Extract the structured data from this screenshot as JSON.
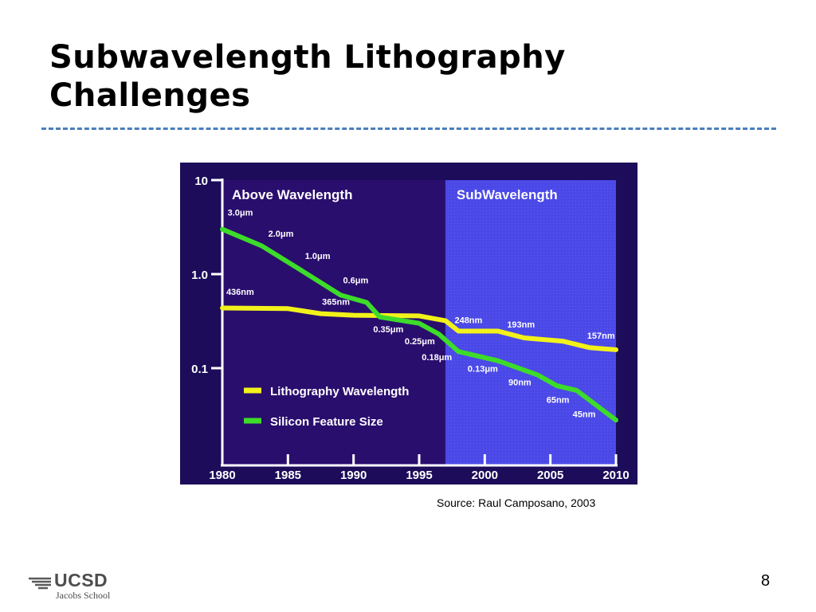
{
  "slide": {
    "title_line1": "Subwavelength Lithography",
    "title_line2": "Challenges",
    "source": "Source: Raul Camposano, 2003",
    "page_number": "8",
    "logo_main": "UCSD",
    "logo_sub": "Jacobs School"
  },
  "chart_data": {
    "type": "line",
    "y_scale": "log",
    "xlim": [
      1980,
      2010
    ],
    "ylim": [
      0.01,
      10
    ],
    "x_ticks": [
      "1980",
      "1985",
      "1990",
      "1995",
      "2000",
      "2005",
      "2010"
    ],
    "y_ticks": [
      {
        "value": 10,
        "label": "10"
      },
      {
        "value": 1,
        "label": "1.0"
      },
      {
        "value": 0.1,
        "label": "0.1"
      }
    ],
    "regions": [
      {
        "label": "Above Wavelength",
        "from": 1980,
        "to": 1997,
        "color": "#2a0e6e"
      },
      {
        "label": "SubWavelength",
        "from": 1997,
        "to": 2010,
        "color": "#4a48e6"
      }
    ],
    "series": [
      {
        "name": "Lithography Wavelength",
        "color": "#f2f21a",
        "points": [
          [
            1980,
            0.436
          ],
          [
            1985,
            0.43
          ],
          [
            1987.5,
            0.38
          ],
          [
            1990,
            0.365
          ],
          [
            1995,
            0.36
          ],
          [
            1997,
            0.32
          ],
          [
            1998,
            0.248
          ],
          [
            2001,
            0.248
          ],
          [
            2003,
            0.21
          ],
          [
            2006,
            0.193
          ],
          [
            2008,
            0.165
          ],
          [
            2010,
            0.157
          ]
        ]
      },
      {
        "name": "Silicon Feature Size",
        "color": "#3ddc2a",
        "points": [
          [
            1980,
            3.0
          ],
          [
            1983,
            2.0
          ],
          [
            1986,
            1.1
          ],
          [
            1989,
            0.6
          ],
          [
            1991,
            0.5
          ],
          [
            1992,
            0.35
          ],
          [
            1995,
            0.3
          ],
          [
            1996.5,
            0.23
          ],
          [
            1998,
            0.15
          ],
          [
            2001,
            0.12
          ],
          [
            2004,
            0.085
          ],
          [
            2005.5,
            0.065
          ],
          [
            2007,
            0.058
          ],
          [
            2010,
            0.028
          ]
        ]
      }
    ],
    "annotations": [
      {
        "text": "3.0μm",
        "x": 1980.4,
        "y": 4.2,
        "anchor": "start"
      },
      {
        "text": "2.0μm",
        "x": 1983.5,
        "y": 2.5,
        "anchor": "start"
      },
      {
        "text": "1.0μm",
        "x": 1986.3,
        "y": 1.45,
        "anchor": "start"
      },
      {
        "text": "0.6μm",
        "x": 1989.2,
        "y": 0.8,
        "anchor": "start"
      },
      {
        "text": "436nm",
        "x": 1980.3,
        "y": 0.6,
        "anchor": "start"
      },
      {
        "text": "365nm",
        "x": 1987.6,
        "y": 0.47,
        "anchor": "start"
      },
      {
        "text": "0.35μm",
        "x": 1991.5,
        "y": 0.24,
        "anchor": "start"
      },
      {
        "text": "0.25μm",
        "x": 1993.9,
        "y": 0.18,
        "anchor": "start"
      },
      {
        "text": "248nm",
        "x": 1997.7,
        "y": 0.3,
        "anchor": "start"
      },
      {
        "text": "0.18μm",
        "x": 1995.2,
        "y": 0.122,
        "anchor": "start"
      },
      {
        "text": "193nm",
        "x": 2001.7,
        "y": 0.27,
        "anchor": "start"
      },
      {
        "text": "157nm",
        "x": 2007.8,
        "y": 0.205,
        "anchor": "start"
      },
      {
        "text": "0.13μm",
        "x": 1998.7,
        "y": 0.092,
        "anchor": "start"
      },
      {
        "text": "90nm",
        "x": 2001.8,
        "y": 0.066,
        "anchor": "start"
      },
      {
        "text": "65nm",
        "x": 2004.7,
        "y": 0.043,
        "anchor": "start"
      },
      {
        "text": "45nm",
        "x": 2006.7,
        "y": 0.03,
        "anchor": "start"
      }
    ],
    "legend": {
      "placement": "lower-left"
    },
    "grid": false
  }
}
